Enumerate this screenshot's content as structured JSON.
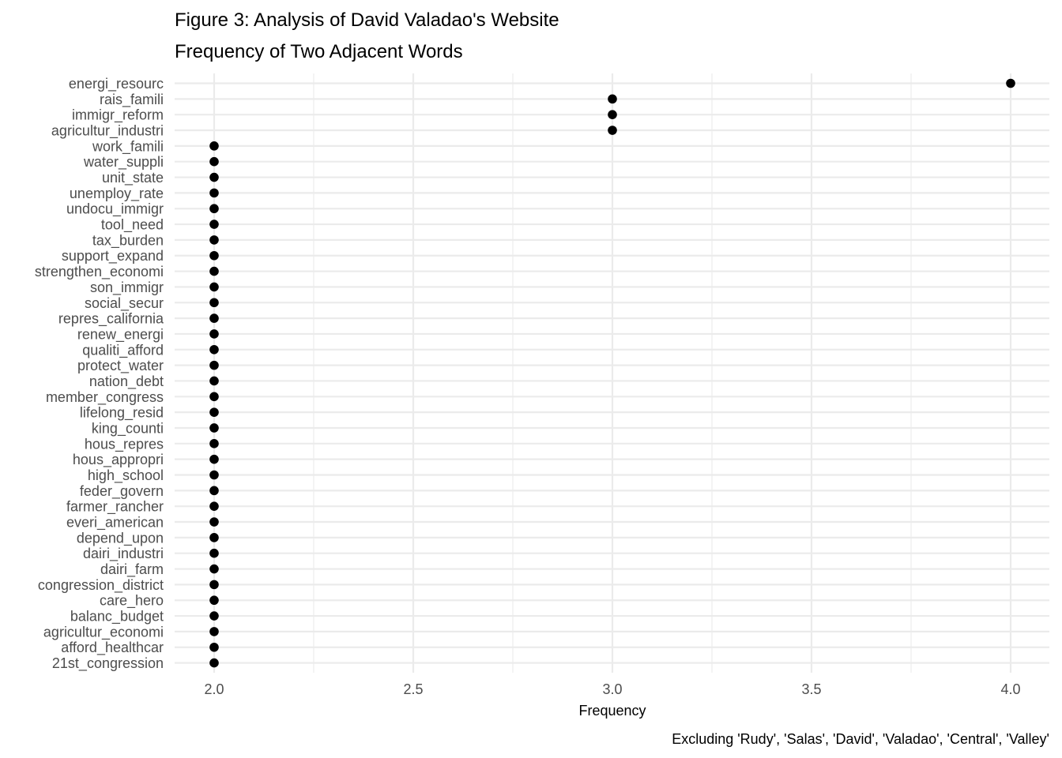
{
  "chart_data": {
    "type": "scatter",
    "title": "Figure 3: Analysis of David Valadao's Website",
    "subtitle": "Frequency of Two Adjacent Words",
    "xlabel": "Frequency",
    "ylabel": "",
    "caption": "Excluding 'Rudy', 'Salas', 'David', 'Valadao', 'Central', 'Valley'",
    "xlim": [
      1.9,
      4.1
    ],
    "xticks": [
      "2.0",
      "2.5",
      "3.0",
      "3.5",
      "4.0"
    ],
    "xtick_values": [
      2.0,
      2.5,
      3.0,
      3.5,
      4.0
    ],
    "grid": true,
    "point_color": "#000000",
    "categories": [
      "energi_resourc",
      "rais_famili",
      "immigr_reform",
      "agricultur_industri",
      "work_famili",
      "water_suppli",
      "unit_state",
      "unemploy_rate",
      "undocu_immigr",
      "tool_need",
      "tax_burden",
      "support_expand",
      "strengthen_economi",
      "son_immigr",
      "social_secur",
      "repres_california",
      "renew_energi",
      "qualiti_afford",
      "protect_water",
      "nation_debt",
      "member_congress",
      "lifelong_resid",
      "king_counti",
      "hous_repres",
      "hous_appropri",
      "high_school",
      "feder_govern",
      "farmer_rancher",
      "everi_american",
      "depend_upon",
      "dairi_industri",
      "dairi_farm",
      "congression_district",
      "care_hero",
      "balanc_budget",
      "agricultur_economi",
      "afford_healthcar",
      "21st_congression"
    ],
    "values": [
      4,
      3,
      3,
      3,
      2,
      2,
      2,
      2,
      2,
      2,
      2,
      2,
      2,
      2,
      2,
      2,
      2,
      2,
      2,
      2,
      2,
      2,
      2,
      2,
      2,
      2,
      2,
      2,
      2,
      2,
      2,
      2,
      2,
      2,
      2,
      2,
      2,
      2
    ]
  }
}
